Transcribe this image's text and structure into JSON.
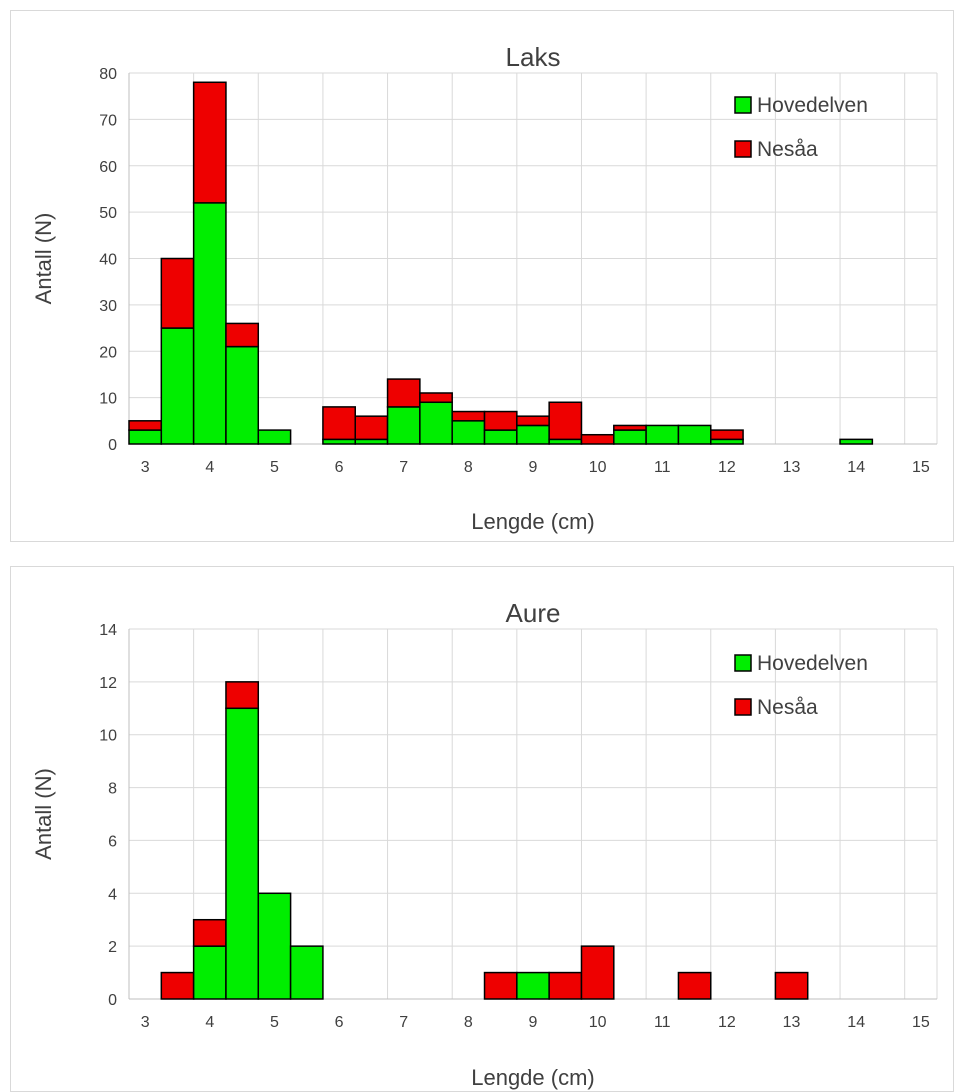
{
  "colors": {
    "Hovedelven": "#00ee00",
    "Nesåa": "#ee0000",
    "outline": "#000000",
    "grid": "#d9d9d9"
  },
  "chart_data": [
    {
      "type": "bar",
      "stacked": true,
      "title": "Laks",
      "xlabel": "Lengde (cm)",
      "ylabel": "Antall (N)",
      "xlim": [
        2.75,
        15.25
      ],
      "ylim": [
        0,
        80
      ],
      "yticks": [
        0,
        10,
        20,
        30,
        40,
        50,
        60,
        70,
        80
      ],
      "xticks": [
        3,
        4,
        5,
        6,
        7,
        8,
        9,
        10,
        11,
        12,
        13,
        14,
        15
      ],
      "bin_width": 0.5,
      "legend": "top-right",
      "grid": true,
      "x": [
        3.0,
        3.5,
        4.0,
        4.5,
        5.0,
        5.5,
        6.0,
        6.5,
        7.0,
        7.5,
        8.0,
        8.5,
        9.0,
        9.5,
        10.0,
        10.5,
        11.0,
        11.5,
        12.0,
        12.5,
        13.0,
        13.5,
        14.0,
        14.5
      ],
      "series": [
        {
          "name": "Hovedelven",
          "values": [
            3,
            25,
            52,
            21,
            3,
            0,
            1,
            1,
            8,
            9,
            5,
            3,
            4,
            1,
            0,
            3,
            4,
            4,
            1,
            0,
            0,
            0,
            1,
            0
          ]
        },
        {
          "name": "Nesåa",
          "values": [
            2,
            15,
            26,
            5,
            0,
            0,
            7,
            5,
            6,
            2,
            2,
            4,
            2,
            8,
            2,
            1,
            0,
            0,
            2,
            0,
            0,
            0,
            0,
            0
          ]
        }
      ]
    },
    {
      "type": "bar",
      "stacked": true,
      "title": "Aure",
      "xlabel": "Lengde (cm)",
      "ylabel": "Antall (N)",
      "xlim": [
        2.75,
        15.25
      ],
      "ylim": [
        0,
        14
      ],
      "yticks": [
        0,
        2,
        4,
        6,
        8,
        10,
        12,
        14
      ],
      "xticks": [
        3,
        4,
        5,
        6,
        7,
        8,
        9,
        10,
        11,
        12,
        13,
        14,
        15
      ],
      "bin_width": 0.5,
      "legend": "top-right",
      "grid": true,
      "x": [
        3.0,
        3.5,
        4.0,
        4.5,
        5.0,
        5.5,
        6.0,
        6.5,
        7.0,
        7.5,
        8.0,
        8.5,
        9.0,
        9.5,
        10.0,
        10.5,
        11.0,
        11.5,
        12.0,
        12.5,
        13.0,
        13.5,
        14.0,
        14.5
      ],
      "series": [
        {
          "name": "Hovedelven",
          "values": [
            0,
            0,
            2,
            11,
            4,
            2,
            0,
            0,
            0,
            0,
            0,
            0,
            1,
            0,
            0,
            0,
            0,
            0,
            0,
            0,
            0,
            0,
            0,
            0
          ]
        },
        {
          "name": "Nesåa",
          "values": [
            0,
            1,
            1,
            1,
            0,
            0,
            0,
            0,
            0,
            0,
            0,
            1,
            0,
            1,
            2,
            0,
            0,
            1,
            0,
            0,
            1,
            0,
            0,
            0
          ]
        }
      ]
    }
  ]
}
